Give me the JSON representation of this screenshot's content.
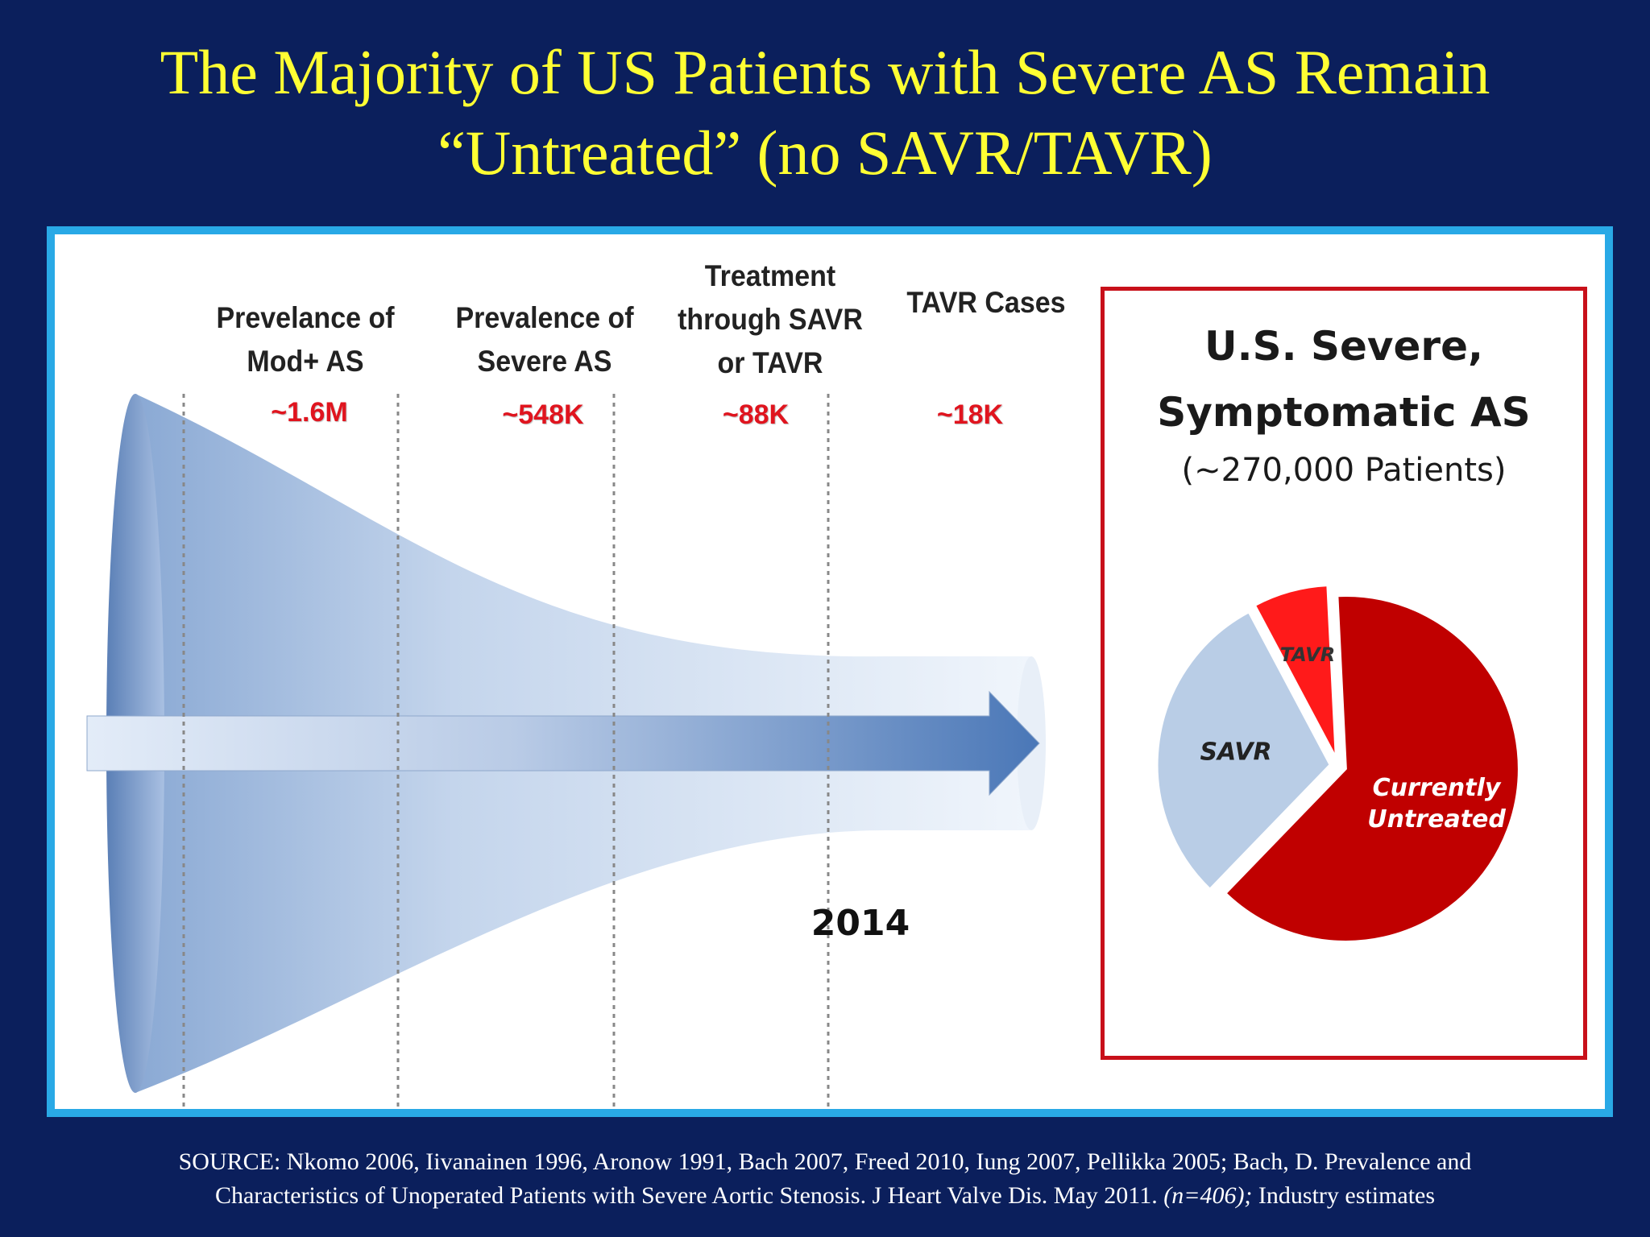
{
  "title": {
    "line1": "The Majority of US Patients with Severe AS Remain",
    "line2": "“Untreated” (no SAVR/TAVR)"
  },
  "funnel": {
    "stages": [
      {
        "label_line1": "Prevelance of",
        "label_line2": "Mod+ AS",
        "label_line3": "",
        "value": "~1.6M"
      },
      {
        "label_line1": "Prevalence of",
        "label_line2": "Severe AS",
        "label_line3": "",
        "value": "~548K"
      },
      {
        "label_line1": "Treatment",
        "label_line2": "through SAVR",
        "label_line3": "or TAVR",
        "value": "~88K"
      },
      {
        "label_line1": "TAVR Cases",
        "label_line2": "",
        "label_line3": "",
        "value": "~18K"
      }
    ],
    "year": "2014"
  },
  "pie_panel": {
    "title_line1": "U.S. Severe,",
    "title_line2": "Symptomatic AS",
    "subtitle": "(~270,000 Patients)"
  },
  "chart_data": [
    {
      "type": "pie",
      "title": "U.S. Severe, Symptomatic AS",
      "subtitle": "(~270,000 Patients)",
      "slices": [
        {
          "label": "TAVR",
          "value": 7,
          "color": "#ff1a1a"
        },
        {
          "label": "Currently Untreated",
          "value": 63,
          "color": "#c00000"
        },
        {
          "label": "SAVR",
          "value": 30,
          "color": "#b9cde6"
        }
      ]
    }
  ],
  "source": {
    "line1": "SOURCE: Nkomo 2006, Iivanainen 1996, Aronow 1991, Bach 2007, Freed 2010, Iung 2007, Pellikka 2005; Bach, D. Prevalence and",
    "line2_a": "Characteristics of Unoperated Patients with Severe Aortic Stenosis. J Heart Valve Dis. May 2011. ",
    "line2_b": "(n=406);",
    "line2_c": " Industry estimates"
  },
  "colors": {
    "background": "#0b1f5c",
    "title": "#ffff33",
    "panel_border": "#29a9e6",
    "stage_value": "#e0141e",
    "pie_border": "#c8101a"
  }
}
